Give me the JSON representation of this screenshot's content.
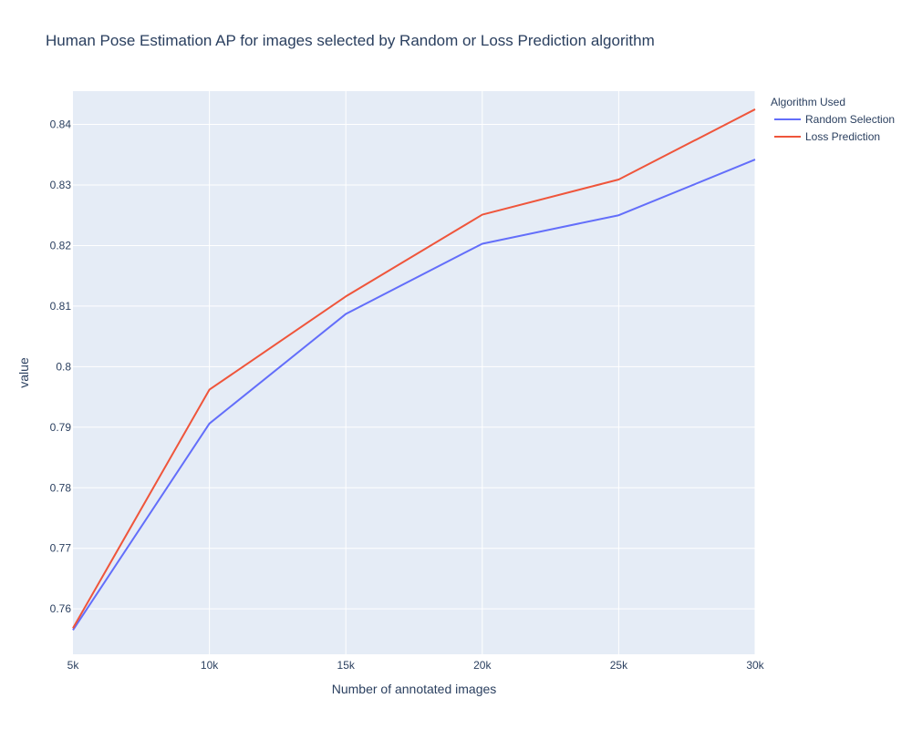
{
  "chart_data": {
    "type": "line",
    "title": "Human Pose Estimation AP for images selected by Random or Loss Prediction algorithm",
    "xlabel": "Number of annotated images",
    "ylabel": "value",
    "x": [
      5000,
      10000,
      15000,
      20000,
      25000,
      30000
    ],
    "x_tick_values": [
      5000,
      10000,
      15000,
      20000,
      25000,
      30000
    ],
    "x_tick_labels": [
      "5k",
      "10k",
      "15k",
      "20k",
      "25k",
      "30k"
    ],
    "y_tick_values": [
      0.76,
      0.77,
      0.78,
      0.79,
      0.8,
      0.81,
      0.82,
      0.83,
      0.84
    ],
    "y_tick_labels": [
      "0.76",
      "0.77",
      "0.78",
      "0.79",
      "0.8",
      "0.81",
      "0.82",
      "0.83",
      "0.84"
    ],
    "xlim": [
      5000,
      30000
    ],
    "ylim": [
      0.7525,
      0.8455
    ],
    "grid": true,
    "legend": {
      "title": "Algorithm Used",
      "placement": "top-right"
    },
    "series": [
      {
        "name": "Random Selection",
        "color": "#636efa",
        "values": [
          0.7565,
          0.7906,
          0.8087,
          0.8203,
          0.825,
          0.8342
        ]
      },
      {
        "name": "Loss Prediction",
        "color": "#ef553b",
        "values": [
          0.7568,
          0.7962,
          0.8116,
          0.8251,
          0.8309,
          0.8425
        ]
      }
    ],
    "colors": {
      "plot_background": "#e5ecf6",
      "grid": "#ffffff",
      "text": "#2a3f5f"
    }
  }
}
